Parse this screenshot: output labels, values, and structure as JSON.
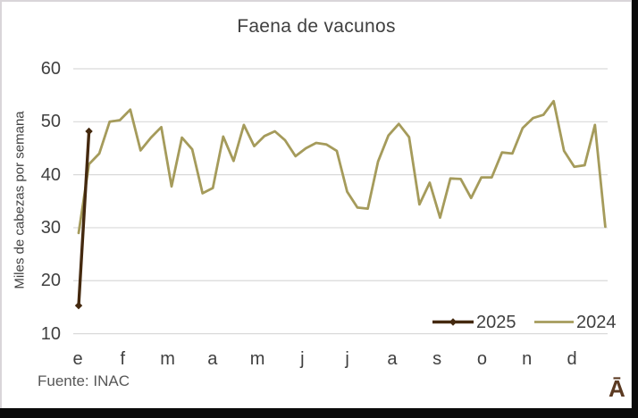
{
  "chart_data": {
    "type": "line",
    "title": "Faena de vacunos",
    "xlabel": "",
    "ylabel": "Miles de cabezas por semana",
    "ylim": [
      10,
      60
    ],
    "yticks": [
      10,
      20,
      30,
      40,
      50,
      60
    ],
    "x_unit": "week",
    "x_month_labels": [
      "e",
      "f",
      "m",
      "a",
      "m",
      "j",
      "j",
      "a",
      "s",
      "o",
      "n",
      "d"
    ],
    "grid": "horizontal",
    "gridline_color": "#d9d9d9",
    "legend_position": "inside-bottom-right",
    "series": [
      {
        "name": "2025",
        "color": "#44290f",
        "marker": "diamond",
        "values": [
          15.3,
          48.2
        ]
      },
      {
        "name": "2024",
        "color": "#a59b5b",
        "marker": "none",
        "values": [
          29,
          42,
          44,
          50,
          50.3,
          52.3,
          44.6,
          47,
          49,
          37.8,
          47,
          44.8,
          36.5,
          37.5,
          47.2,
          42.6,
          49.4,
          45.4,
          47.3,
          48.2,
          46.5,
          43.5,
          45,
          46,
          45.7,
          44.5,
          36.8,
          33.8,
          33.6,
          42.5,
          47.4,
          49.6,
          47.1,
          34.4,
          38.5,
          31.9,
          39.3,
          39.2,
          35.6,
          39.5,
          39.5,
          44.2,
          44,
          48.8,
          50.7,
          51.3,
          53.9,
          44.5,
          41.5,
          41.8,
          49.4,
          30.2
        ]
      }
    ]
  },
  "footer": {
    "source": "Fuente: INAC",
    "watermark": "Ā"
  }
}
